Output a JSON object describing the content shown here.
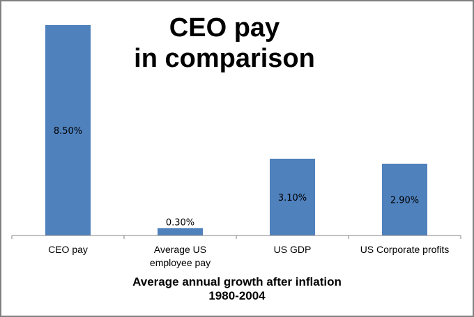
{
  "chart_data": {
    "type": "bar",
    "title_lines": [
      "CEO pay",
      "in comparison"
    ],
    "categories": [
      "CEO pay",
      "Average US employee pay",
      "US GDP",
      "US Corporate profits"
    ],
    "category_label_lines": [
      [
        "CEO pay"
      ],
      [
        "Average US",
        "employee pay"
      ],
      [
        "US GDP"
      ],
      [
        "US Corporate profits"
      ]
    ],
    "values": [
      8.5,
      0.3,
      3.1,
      2.9
    ],
    "data_labels": [
      "8.50%",
      "0.30%",
      "3.10%",
      "2.90%"
    ],
    "xlabel_lines": [
      "Average annual growth after inflation",
      "1980-2004"
    ],
    "ylabel": "",
    "ylim": [
      0,
      8.5
    ],
    "grid": false,
    "legend": "none",
    "bar_color": "#4f81bd"
  }
}
